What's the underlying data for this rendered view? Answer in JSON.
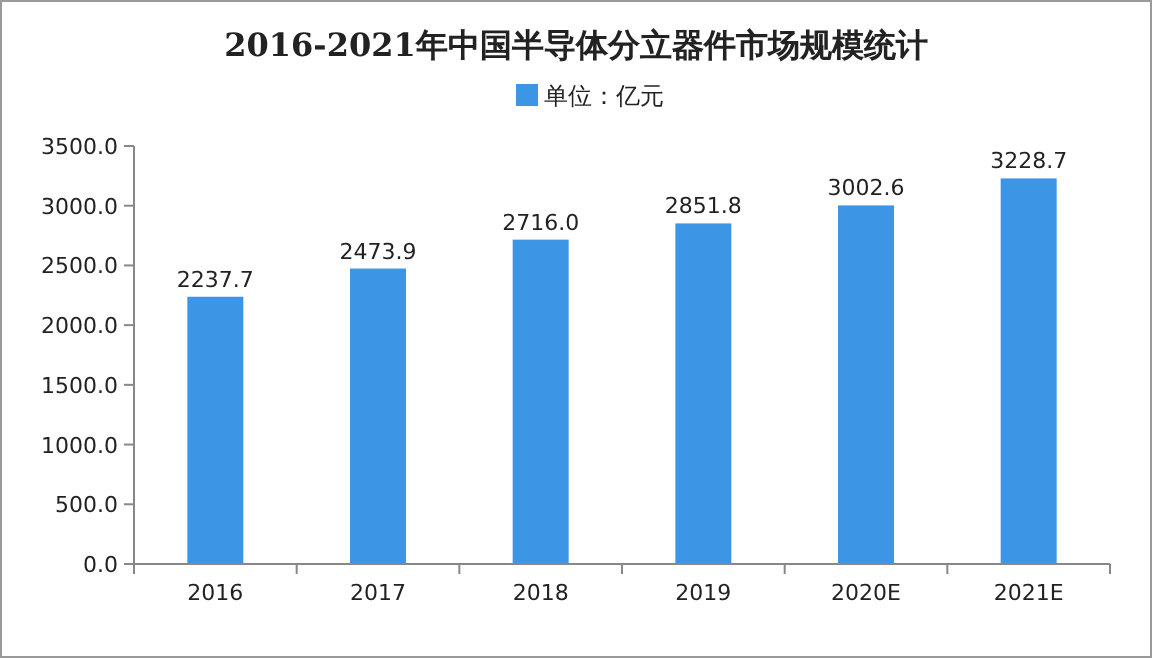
{
  "chart_data": {
    "type": "bar",
    "title": "2016-2021年中国半导体分立器件市场规模统计",
    "categories": [
      "2016",
      "2017",
      "2018",
      "2019",
      "2020E",
      "2021E"
    ],
    "series": [
      {
        "name": "单位：亿元",
        "color": "#3d95e6",
        "values": [
          2237.7,
          2473.9,
          2716.0,
          2851.8,
          3002.6,
          3228.7
        ],
        "value_labels": [
          "2237.7",
          "2473.9",
          "2716.0",
          "2851.8",
          "3002.6",
          "3228.7"
        ]
      }
    ],
    "ylim": [
      0,
      3500
    ],
    "yticks": [
      {
        "value": 0,
        "label": "0.0"
      },
      {
        "value": 500,
        "label": "500.0"
      },
      {
        "value": 1000,
        "label": "1000.0"
      },
      {
        "value": 1500,
        "label": "1500.0"
      },
      {
        "value": 2000,
        "label": "2000.0"
      },
      {
        "value": 2500,
        "label": "2500.0"
      },
      {
        "value": 3000,
        "label": "3000.0"
      },
      {
        "value": 3500,
        "label": "3500.0"
      }
    ],
    "grid": false,
    "legend": "top"
  }
}
